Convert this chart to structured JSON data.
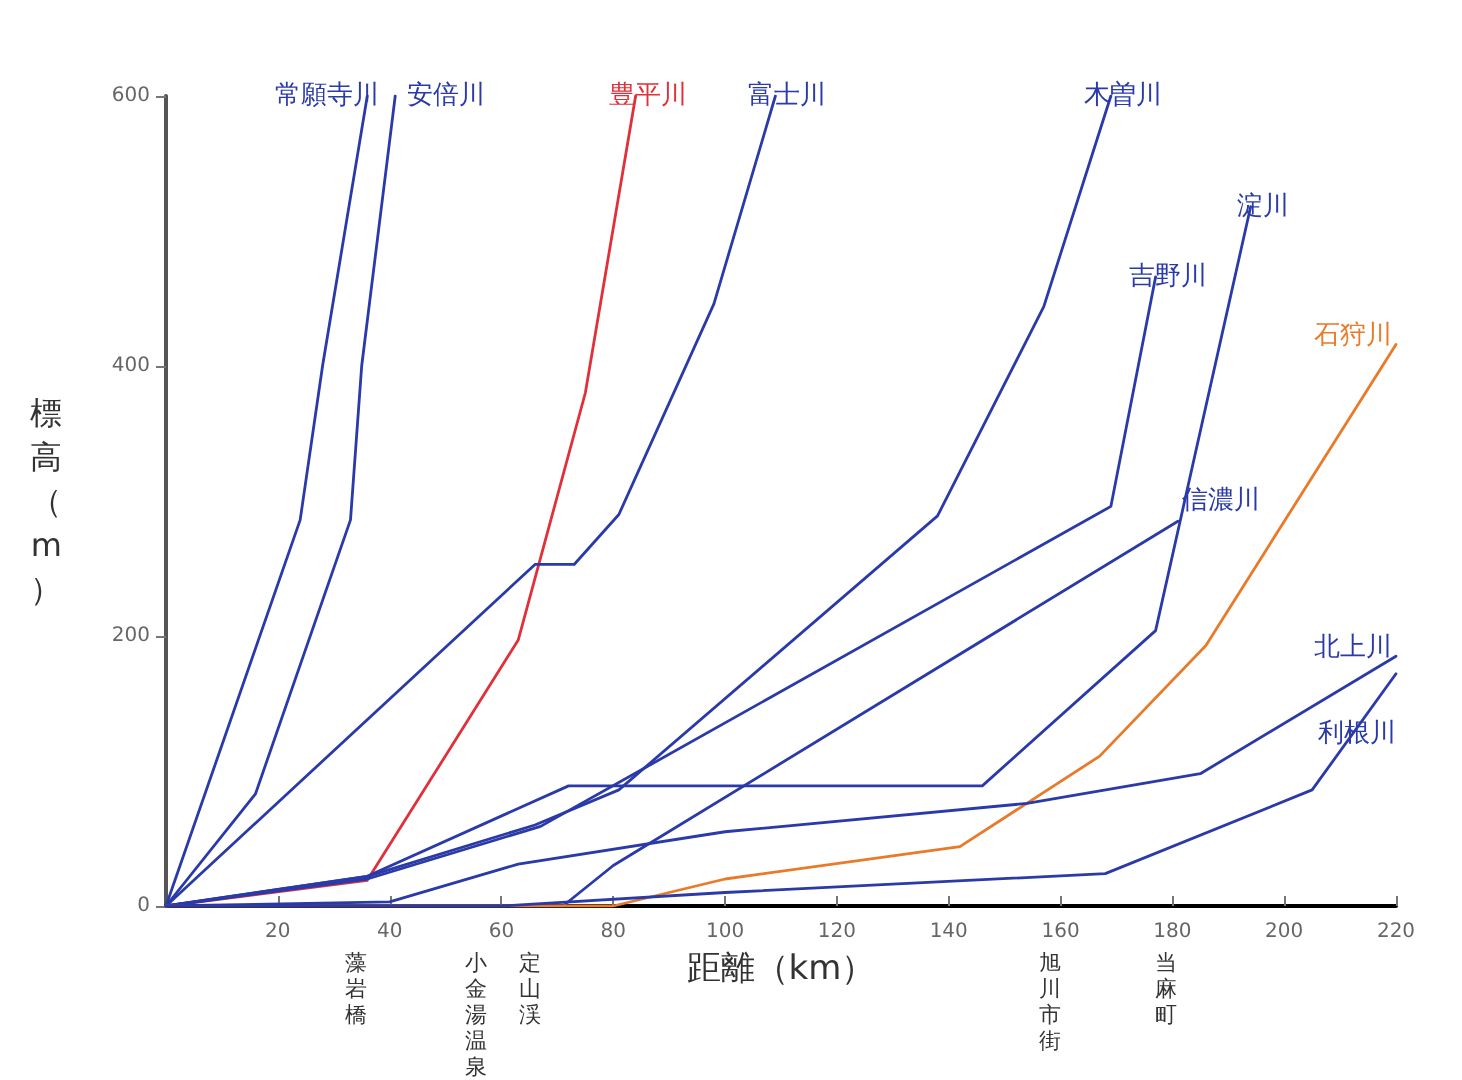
{
  "chart_data": {
    "type": "line",
    "xlabel": "距離（km）",
    "ylabel": "標高（m）",
    "xlim": [
      0,
      220
    ],
    "xticks": [
      20,
      40,
      60,
      80,
      100,
      120,
      140,
      160,
      180,
      200,
      220
    ],
    "ylim": [
      0,
      600
    ],
    "yticks": [
      0,
      200,
      400,
      600
    ],
    "grid": false,
    "legend": false,
    "marker": "none",
    "line_style": "solid",
    "series": [
      {
        "name": "常願寺川",
        "color": "#2a3aa8",
        "x": [
          0,
          24,
          28,
          36
        ],
        "values": [
          0,
          286,
          400,
          600
        ]
      },
      {
        "name": "安倍川",
        "color": "#2a3aa8",
        "x": [
          0,
          16,
          33,
          35,
          41
        ],
        "values": [
          0,
          83,
          286,
          400,
          600
        ]
      },
      {
        "name": "豊平川",
        "color": "#e0303a",
        "x": [
          0,
          36,
          63,
          75,
          84
        ],
        "values": [
          0,
          19,
          197,
          380,
          600
        ]
      },
      {
        "name": "富士川",
        "color": "#2a3aa8",
        "x": [
          0,
          66,
          73,
          81,
          98,
          109
        ],
        "values": [
          0,
          253,
          253,
          290,
          446,
          600
        ]
      },
      {
        "name": "木曽川",
        "color": "#2a3aa8",
        "x": [
          0,
          36,
          66,
          81,
          138,
          157,
          169
        ],
        "values": [
          0,
          22,
          60,
          86,
          289,
          444,
          600
        ]
      },
      {
        "name": "吉野川",
        "color": "#2a3aa8",
        "x": [
          0,
          36,
          67,
          169,
          177
        ],
        "values": [
          0,
          20,
          59,
          296,
          466
        ]
      },
      {
        "name": "淀川",
        "color": "#2a3aa8",
        "x": [
          0,
          36,
          72,
          146,
          177,
          194
        ],
        "values": [
          0,
          22,
          89,
          89,
          204,
          518
        ]
      },
      {
        "name": "信濃川",
        "color": "#2a3aa8",
        "x": [
          0,
          71,
          80,
          181
        ],
        "values": [
          0,
          0,
          30,
          285
        ]
      },
      {
        "name": "石狩川",
        "color": "#e87a2a",
        "x": [
          0,
          80,
          100,
          142,
          167,
          186,
          220
        ],
        "values": [
          0,
          0,
          20,
          44,
          111,
          193,
          416
        ]
      },
      {
        "name": "北上川",
        "color": "#2a3aa8",
        "x": [
          0,
          40,
          63,
          100,
          154,
          185,
          220
        ],
        "values": [
          0,
          3,
          31,
          55,
          76,
          98,
          185
        ]
      },
      {
        "name": "利根川",
        "color": "#2a3aa8",
        "x": [
          0,
          60,
          100,
          168,
          205,
          220
        ],
        "values": [
          0,
          0,
          10,
          24,
          86,
          172
        ]
      }
    ],
    "annotations": [
      "藻岩橋",
      "小金湯温泉",
      "定山渓",
      "旭川市街",
      "当麻町"
    ]
  }
}
